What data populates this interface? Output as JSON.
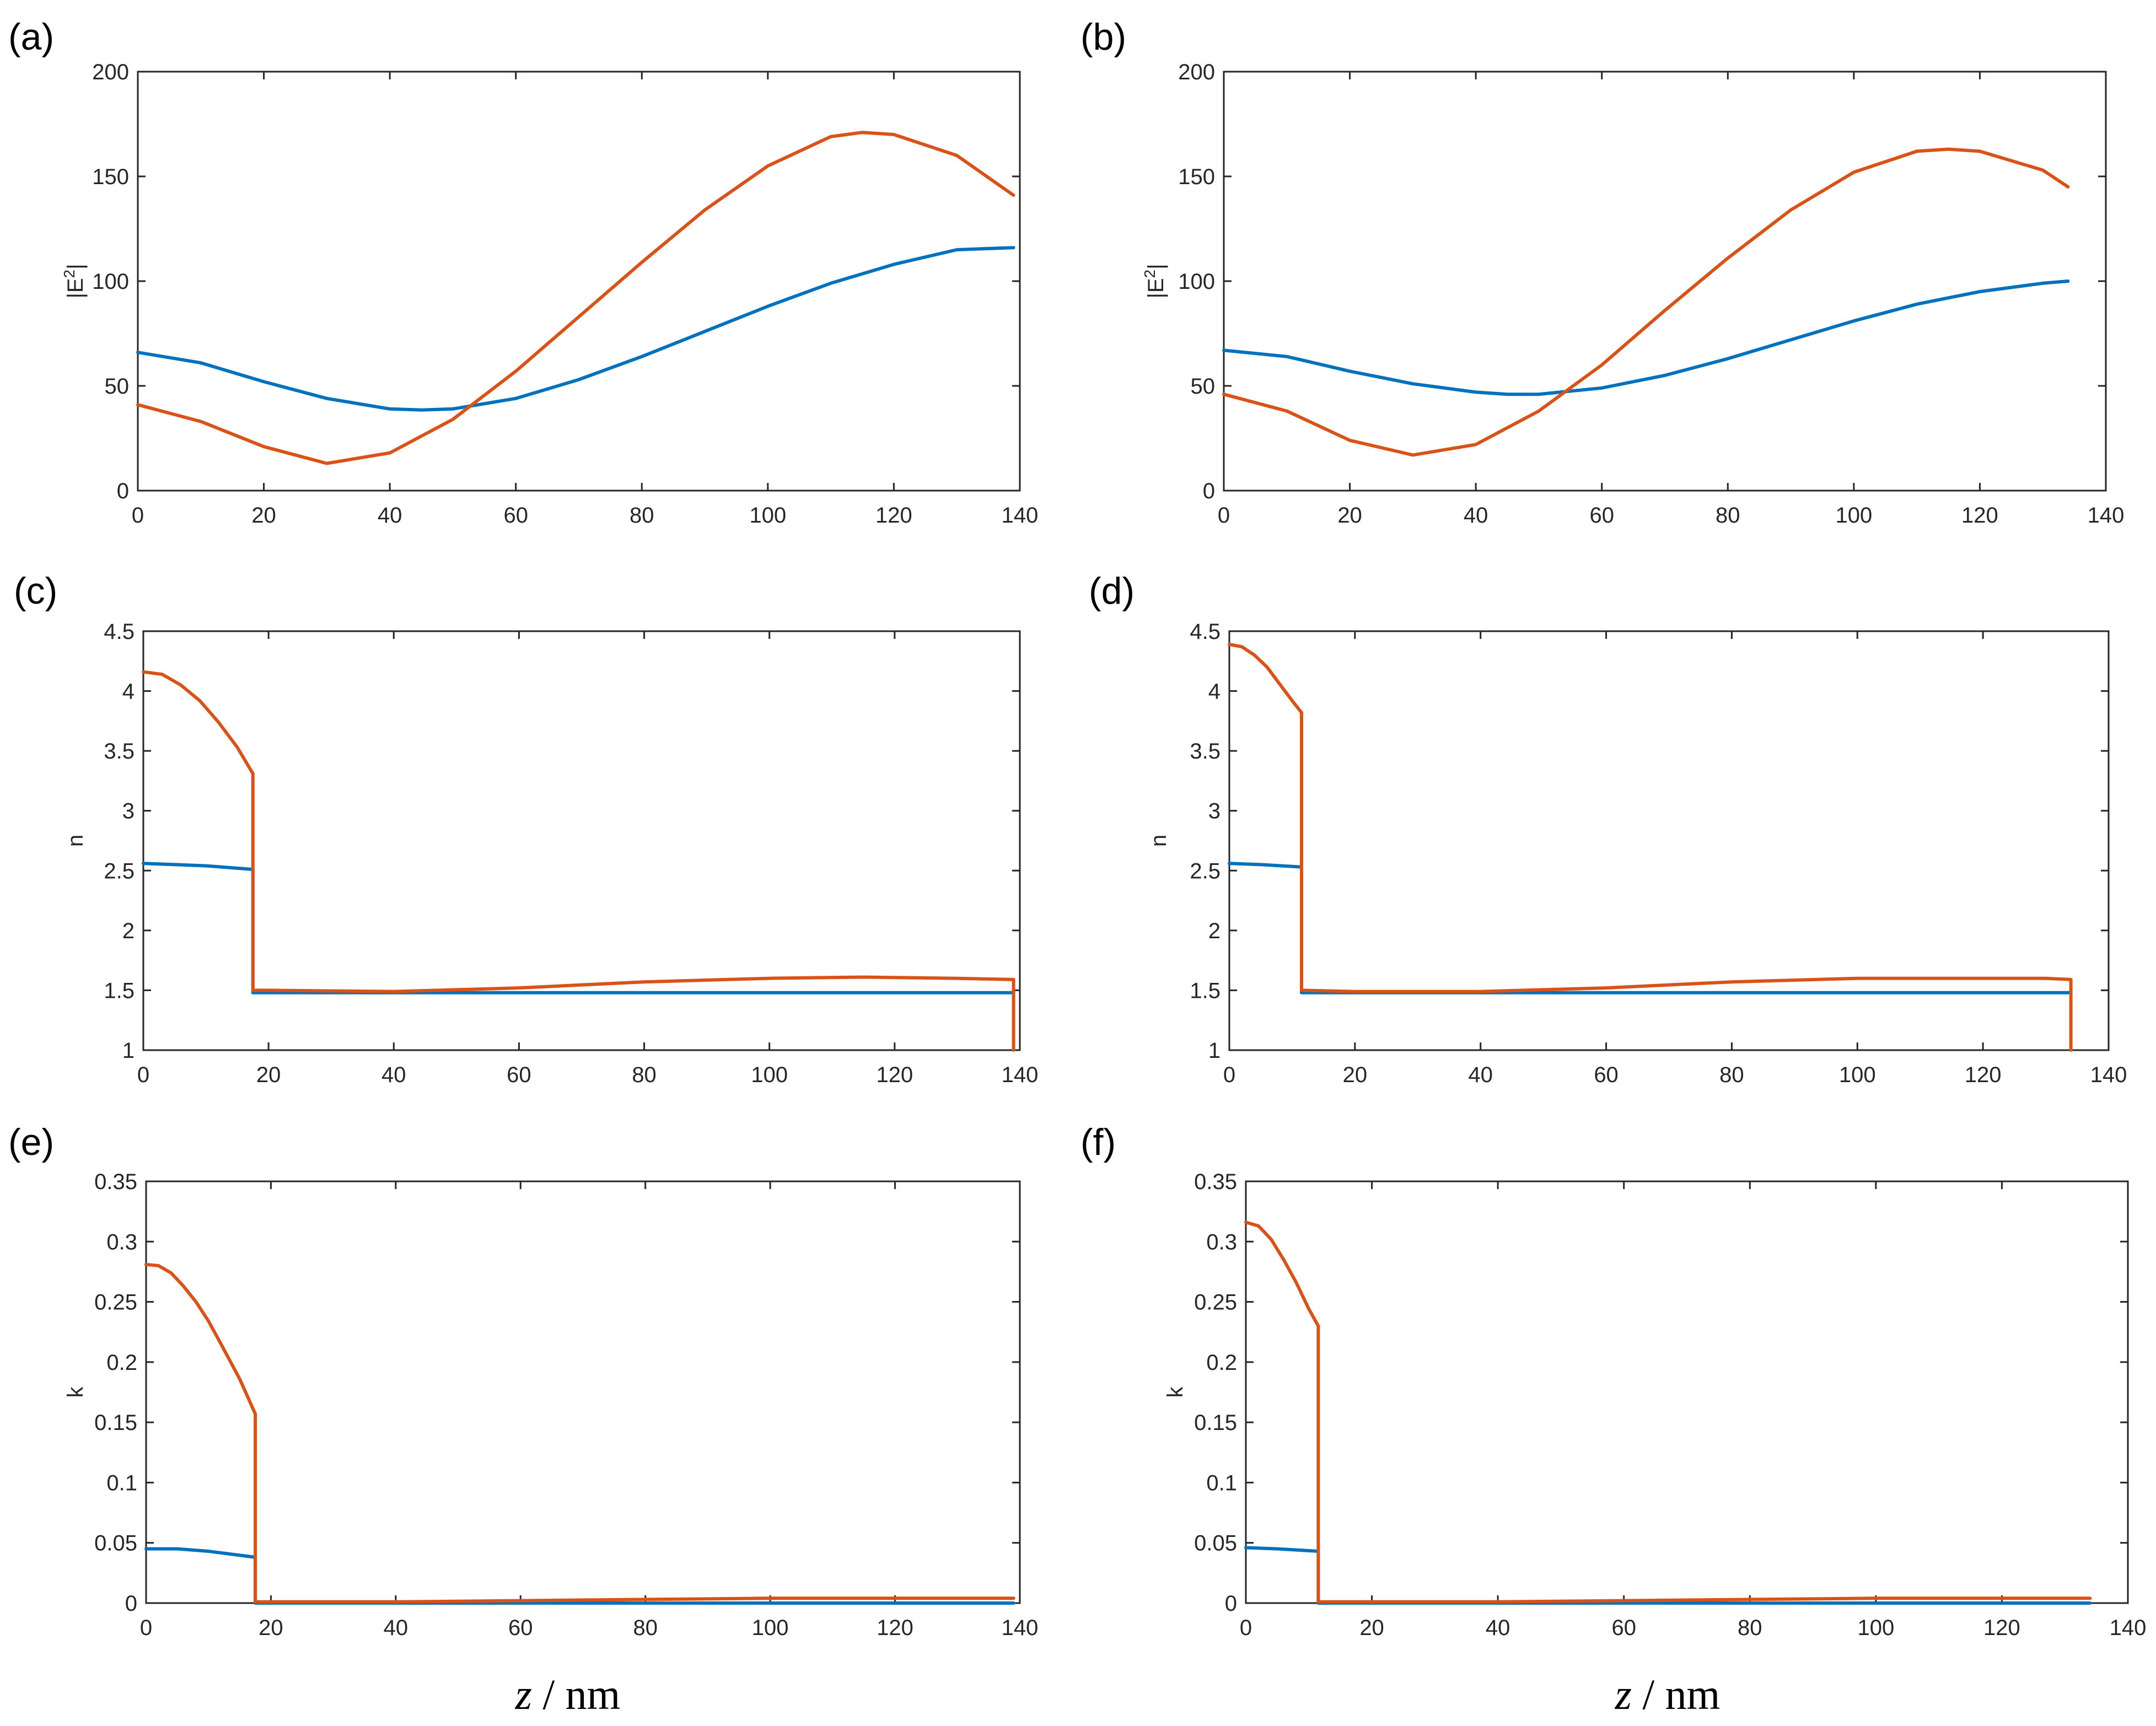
{
  "figure": {
    "xlabel_italic": "z",
    "xlabel_unit": " / nm"
  },
  "colors": {
    "series1": "#0072BD",
    "series2": "#D95319"
  },
  "chart_data": [
    {
      "id": "a",
      "panel_label": "(a)",
      "type": "line",
      "xlabel": "",
      "ylabel": "|E2|",
      "ylabel_base": "|E",
      "ylabel_sup": "2",
      "ylabel_end": "|",
      "xlim": [
        0,
        140
      ],
      "ylim": [
        0,
        200
      ],
      "xticks": [
        0,
        20,
        40,
        60,
        80,
        100,
        120,
        140
      ],
      "xtick_labels": [
        "0",
        "20",
        "40",
        "60",
        "80",
        "100",
        "120",
        "140"
      ],
      "yticks": [
        0,
        50,
        100,
        150,
        200
      ],
      "ytick_labels": [
        "0",
        "50",
        "100",
        "150",
        "200"
      ],
      "series": [
        {
          "name": "series1",
          "x": [
            0,
            10,
            20,
            30,
            40,
            45,
            50,
            60,
            70,
            80,
            90,
            100,
            110,
            120,
            130,
            139
          ],
          "y": [
            66,
            61,
            52,
            44,
            39,
            38.5,
            39,
            44,
            53,
            64,
            76,
            88,
            99,
            108,
            115,
            116
          ]
        },
        {
          "name": "series2",
          "x": [
            0,
            10,
            20,
            30,
            40,
            50,
            60,
            70,
            80,
            90,
            100,
            110,
            115,
            120,
            130,
            139
          ],
          "y": [
            41,
            33,
            21,
            13,
            18,
            34,
            57,
            83,
            109,
            134,
            155,
            169,
            171,
            170,
            160,
            141
          ]
        }
      ]
    },
    {
      "id": "b",
      "panel_label": "(b)",
      "type": "line",
      "xlabel": "",
      "ylabel": "|E2|",
      "ylabel_base": "|E",
      "ylabel_sup": "2",
      "ylabel_end": "|",
      "xlim": [
        0,
        140
      ],
      "ylim": [
        0,
        200
      ],
      "xticks": [
        0,
        20,
        40,
        60,
        80,
        100,
        120,
        140
      ],
      "xtick_labels": [
        "0",
        "20",
        "40",
        "60",
        "80",
        "100",
        "120",
        "140"
      ],
      "yticks": [
        0,
        50,
        100,
        150,
        200
      ],
      "ytick_labels": [
        "0",
        "50",
        "100",
        "150",
        "200"
      ],
      "series": [
        {
          "name": "series1",
          "x": [
            0,
            10,
            20,
            30,
            40,
            45,
            50,
            60,
            70,
            80,
            90,
            100,
            110,
            120,
            130,
            134
          ],
          "y": [
            67,
            64,
            57,
            51,
            47,
            46,
            46,
            49,
            55,
            63,
            72,
            81,
            89,
            95,
            99,
            100
          ]
        },
        {
          "name": "series2",
          "x": [
            0,
            10,
            20,
            30,
            40,
            50,
            60,
            70,
            80,
            90,
            100,
            110,
            115,
            120,
            130,
            134
          ],
          "y": [
            46,
            38,
            24,
            17,
            22,
            38,
            60,
            86,
            111,
            134,
            152,
            162,
            163,
            162,
            153,
            145
          ]
        }
      ]
    },
    {
      "id": "c",
      "panel_label": "(c)",
      "type": "line",
      "xlabel": "",
      "ylabel": "n",
      "xlim": [
        0,
        140
      ],
      "ylim": [
        1,
        4.5
      ],
      "xticks": [
        0,
        20,
        40,
        60,
        80,
        100,
        120,
        140
      ],
      "xtick_labels": [
        "0",
        "20",
        "40",
        "60",
        "80",
        "100",
        "120",
        "140"
      ],
      "yticks": [
        1,
        1.5,
        2,
        2.5,
        3,
        3.5,
        4,
        4.5
      ],
      "ytick_labels": [
        "1",
        "1.5",
        "2",
        "2.5",
        "3",
        "3.5",
        "4",
        "4.5"
      ],
      "series": [
        {
          "name": "series1",
          "x": [
            0,
            5,
            10,
            17.5,
            17.5,
            40,
            80,
            120,
            139
          ],
          "y": [
            2.56,
            2.55,
            2.54,
            2.51,
            1.48,
            1.48,
            1.48,
            1.48,
            1.48
          ]
        },
        {
          "name": "series2",
          "x": [
            0,
            3,
            6,
            9,
            12,
            15,
            17.5,
            17.5,
            20,
            40,
            60,
            80,
            100,
            115,
            130,
            139,
            139
          ],
          "y": [
            4.16,
            4.14,
            4.05,
            3.92,
            3.74,
            3.53,
            3.31,
            1.5,
            1.5,
            1.49,
            1.52,
            1.57,
            1.6,
            1.61,
            1.6,
            1.59,
            1
          ]
        }
      ]
    },
    {
      "id": "d",
      "panel_label": "(d)",
      "type": "line",
      "xlabel": "",
      "ylabel": "n",
      "xlim": [
        0,
        140
      ],
      "ylim": [
        1,
        4.5
      ],
      "xticks": [
        0,
        20,
        40,
        60,
        80,
        100,
        120,
        140
      ],
      "xtick_labels": [
        "0",
        "20",
        "40",
        "60",
        "80",
        "100",
        "120",
        "140"
      ],
      "yticks": [
        1,
        1.5,
        2,
        2.5,
        3,
        3.5,
        4,
        4.5
      ],
      "ytick_labels": [
        "1",
        "1.5",
        "2",
        "2.5",
        "3",
        "3.5",
        "4",
        "4.5"
      ],
      "series": [
        {
          "name": "series1",
          "x": [
            0,
            5,
            11.5,
            11.5,
            40,
            80,
            120,
            134
          ],
          "y": [
            2.56,
            2.55,
            2.53,
            1.48,
            1.48,
            1.48,
            1.48,
            1.48
          ]
        },
        {
          "name": "series2",
          "x": [
            0,
            2,
            4,
            6,
            8,
            10,
            11.5,
            11.5,
            20,
            40,
            60,
            80,
            100,
            115,
            130,
            134,
            134
          ],
          "y": [
            4.39,
            4.37,
            4.3,
            4.2,
            4.06,
            3.92,
            3.82,
            1.5,
            1.49,
            1.49,
            1.52,
            1.57,
            1.6,
            1.6,
            1.6,
            1.59,
            1
          ]
        }
      ]
    },
    {
      "id": "e",
      "panel_label": "(e)",
      "type": "line",
      "xlabel": "z / nm",
      "ylabel": "k",
      "xlim": [
        0,
        140
      ],
      "ylim": [
        0,
        0.35
      ],
      "xticks": [
        0,
        20,
        40,
        60,
        80,
        100,
        120,
        140
      ],
      "xtick_labels": [
        "0",
        "20",
        "40",
        "60",
        "80",
        "100",
        "120",
        "140"
      ],
      "yticks": [
        0,
        0.05,
        0.1,
        0.15,
        0.2,
        0.25,
        0.3,
        0.35
      ],
      "ytick_labels": [
        "0",
        "0.05",
        "0.1",
        "0.15",
        "0.2",
        "0.25",
        "0.3",
        "0.35"
      ],
      "series": [
        {
          "name": "series1",
          "x": [
            0,
            5,
            10,
            17.5,
            17.5,
            60,
            100,
            139
          ],
          "y": [
            0.045,
            0.045,
            0.043,
            0.038,
            0,
            0,
            0,
            0
          ]
        },
        {
          "name": "series2",
          "x": [
            0,
            2,
            4,
            6,
            8,
            10,
            12,
            15,
            17.5,
            17.5,
            40,
            60,
            80,
            100,
            120,
            139
          ],
          "y": [
            0.281,
            0.28,
            0.274,
            0.263,
            0.25,
            0.234,
            0.215,
            0.186,
            0.157,
            0.001,
            0.001,
            0.002,
            0.003,
            0.004,
            0.004,
            0.004
          ]
        }
      ]
    },
    {
      "id": "f",
      "panel_label": "(f)",
      "type": "line",
      "xlabel": "z / nm",
      "ylabel": "k",
      "xlim": [
        0,
        140
      ],
      "ylim": [
        0,
        0.35
      ],
      "xticks": [
        0,
        20,
        40,
        60,
        80,
        100,
        120,
        140
      ],
      "xtick_labels": [
        "0",
        "20",
        "40",
        "60",
        "80",
        "100",
        "120",
        "140"
      ],
      "yticks": [
        0,
        0.05,
        0.1,
        0.15,
        0.2,
        0.25,
        0.3,
        0.35
      ],
      "ytick_labels": [
        "0",
        "0.05",
        "0.1",
        "0.15",
        "0.2",
        "0.25",
        "0.3",
        "0.35"
      ],
      "series": [
        {
          "name": "series1",
          "x": [
            0,
            5,
            11.5,
            11.5,
            60,
            100,
            134
          ],
          "y": [
            0.046,
            0.045,
            0.043,
            0,
            0,
            0,
            0
          ]
        },
        {
          "name": "series2",
          "x": [
            0,
            2,
            4,
            6,
            8,
            10,
            11.5,
            11.5,
            40,
            60,
            80,
            100,
            120,
            134
          ],
          "y": [
            0.316,
            0.313,
            0.302,
            0.285,
            0.266,
            0.244,
            0.23,
            0.001,
            0.001,
            0.002,
            0.003,
            0.004,
            0.004,
            0.004
          ]
        }
      ]
    }
  ]
}
